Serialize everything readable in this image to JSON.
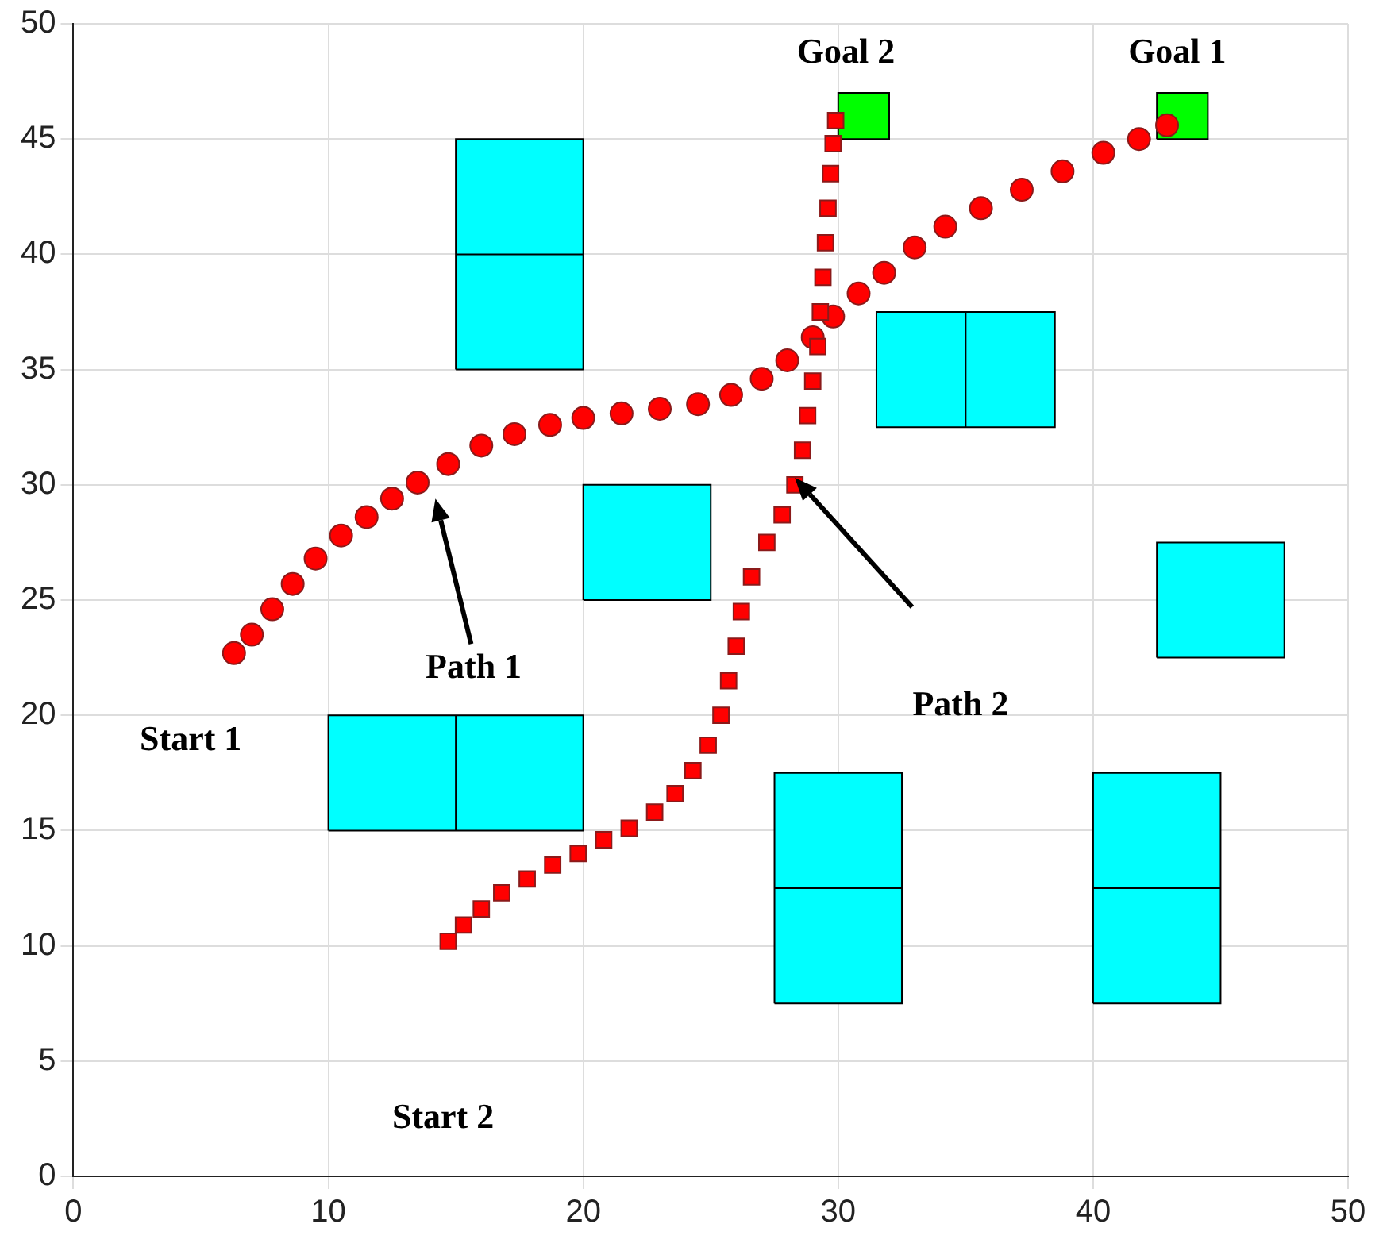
{
  "chart_data": {
    "type": "scatter",
    "xlim": [
      0,
      50
    ],
    "ylim": [
      0,
      50
    ],
    "xticks": [
      0,
      10,
      20,
      30,
      40,
      50
    ],
    "yticks": [
      0,
      5,
      10,
      15,
      20,
      25,
      30,
      35,
      40,
      45,
      50
    ],
    "grid": true,
    "legend": false,
    "series": [
      {
        "type": "area",
        "color": "#00ffff",
        "x": [
          20,
          25,
          25,
          20,
          20
        ],
        "values": [
          25,
          25,
          30,
          30,
          25
        ]
      },
      {
        "type": "area",
        "color": "#00ffff",
        "x": [
          31.5,
          38.5,
          38.5,
          35,
          35,
          35,
          31.5,
          31.5
        ],
        "values": [
          32.5,
          32.5,
          37.5,
          37.5,
          32.5,
          37.5,
          37.5,
          32.5
        ]
      },
      {
        "type": "area",
        "color": "#00ffff",
        "x": [
          15,
          20,
          20,
          15,
          15,
          20,
          15,
          15
        ],
        "values": [
          35,
          35,
          45,
          45,
          40,
          40,
          40,
          35
        ]
      },
      {
        "type": "area",
        "color": "#00ffff",
        "x": [
          42.5,
          47.5,
          47.5,
          42.5,
          42.5
        ],
        "values": [
          22.5,
          22.5,
          27.5,
          27.5,
          22.5
        ]
      },
      {
        "type": "area",
        "color": "#00ffff",
        "x": [
          10,
          20,
          20,
          15,
          15,
          15,
          10,
          10
        ],
        "values": [
          15,
          15,
          20,
          20,
          15,
          20,
          20,
          15
        ]
      },
      {
        "type": "area",
        "color": "#00ffff",
        "x": [
          27.5,
          32.5,
          32.5,
          27.5,
          27.5,
          32.5,
          27.5,
          27.5
        ],
        "values": [
          7.5,
          7.5,
          17.5,
          17.5,
          12.5,
          12.5,
          12.5,
          7.5
        ]
      },
      {
        "type": "area",
        "color": "#00ffff",
        "x": [
          40,
          45,
          45,
          40,
          40,
          45,
          40,
          40
        ],
        "values": [
          7.5,
          7.5,
          17.5,
          17.5,
          12.5,
          12.5,
          12.5,
          7.5
        ]
      },
      {
        "type": "area",
        "color": "#00ff00",
        "x": [
          30,
          32,
          32,
          30,
          30
        ],
        "values": [
          45,
          45,
          47,
          47,
          45
        ]
      },
      {
        "type": "area",
        "color": "#00ff00",
        "x": [
          42.5,
          44.5,
          44.5,
          42.5,
          42.5
        ],
        "values": [
          45,
          45,
          47,
          47,
          45
        ]
      },
      {
        "type": "scatter",
        "marker": "circle",
        "color": "#ff0000",
        "x": [
          6.3,
          7,
          7.8,
          8.6,
          9.5,
          10.5,
          11.5,
          12.5,
          13.5,
          14.7,
          16,
          17.3,
          18.7,
          20,
          21.5,
          23,
          24.5,
          25.8,
          27,
          28,
          29,
          29.8,
          30.8,
          31.8,
          33,
          34.2,
          35.6,
          37.2,
          38.8,
          40.4,
          41.8,
          42.9
        ],
        "values": [
          22.7,
          23.5,
          24.6,
          25.7,
          26.8,
          27.8,
          28.6,
          29.4,
          30.1,
          30.9,
          31.7,
          32.2,
          32.6,
          32.9,
          33.1,
          33.3,
          33.5,
          33.9,
          34.6,
          35.4,
          36.4,
          37.3,
          38.3,
          39.2,
          40.3,
          41.2,
          42,
          42.8,
          43.6,
          44.4,
          45,
          45.6
        ]
      },
      {
        "type": "scatter",
        "marker": "square",
        "color": "#ff0000",
        "x": [
          14.7,
          15.3,
          16,
          16.8,
          17.8,
          18.8,
          19.8,
          20.8,
          21.8,
          22.8,
          23.6,
          24.3,
          24.9,
          25.4,
          25.7,
          26,
          26.2,
          26.6,
          27.2,
          27.8,
          28.3,
          28.6,
          28.8,
          29,
          29.2,
          29.3,
          29.4,
          29.5,
          29.6,
          29.7,
          29.8,
          29.9
        ],
        "values": [
          10.2,
          10.9,
          11.6,
          12.3,
          12.9,
          13.5,
          14,
          14.6,
          15.1,
          15.8,
          16.6,
          17.6,
          18.7,
          20,
          21.5,
          23,
          24.5,
          26,
          27.5,
          28.7,
          30,
          31.5,
          33,
          34.5,
          36,
          37.5,
          39,
          40.5,
          42,
          43.5,
          44.8,
          45.8
        ]
      }
    ],
    "annotations": [
      "Goal 2",
      "Goal 1",
      "Path 1",
      "Path 2",
      "Start 1",
      "Start 2"
    ]
  }
}
